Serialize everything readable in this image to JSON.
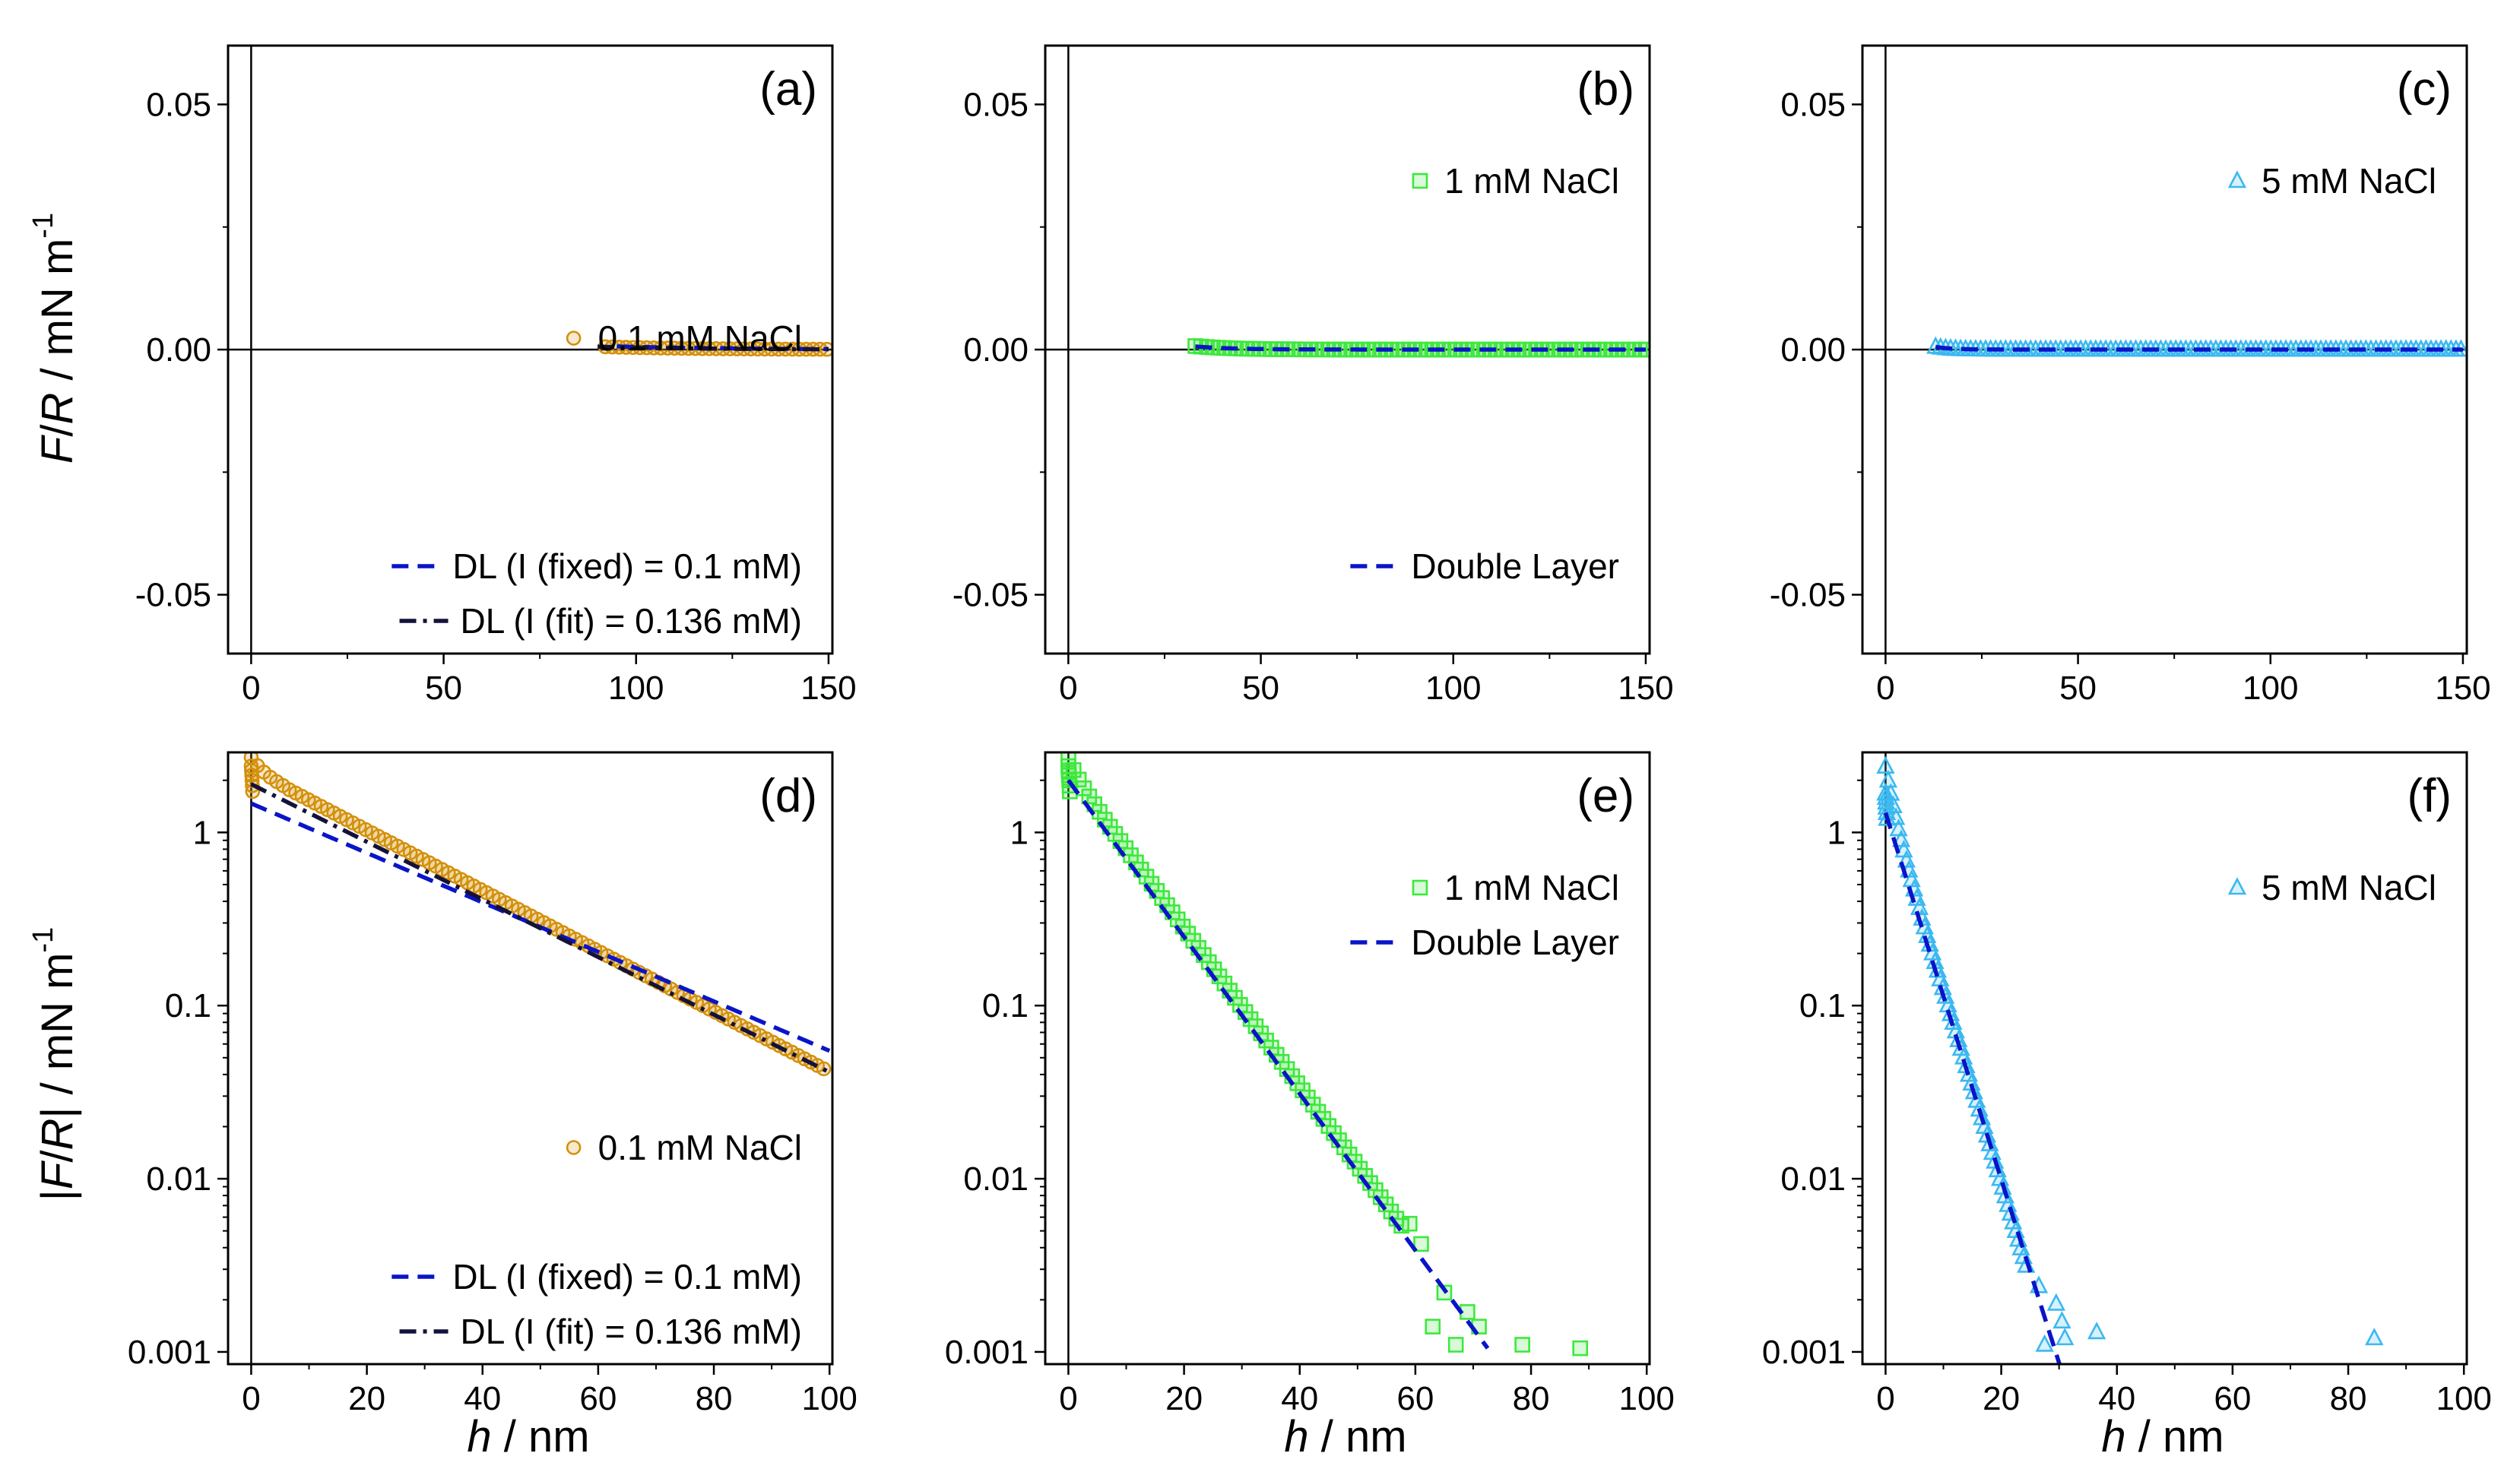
{
  "figure": {
    "xlabel_italic": "h",
    "xlabel_rest": " / nm",
    "ylabel_top": {
      "prefix": "",
      "italic": "F",
      "slash": "/",
      "italic2": "R",
      "suffix": " / mN m",
      "sup": "-1"
    },
    "ylabel_bottom": {
      "prefix": "|",
      "italic": "F",
      "slash": "/",
      "italic2": "R",
      "suffix": "| / mN m",
      "sup": "-1"
    }
  },
  "colors": {
    "orange": "#D4900A",
    "green": "#3DE83D",
    "cyan": "#3BB8F0",
    "blue_dash": "#0A14C8",
    "navy_dashdot": "#14123A"
  },
  "chart_data": [
    {
      "id": "a",
      "label": "(a)",
      "type": "scatter",
      "scale": "linear",
      "xlim": [
        -6,
        151
      ],
      "ylim": [
        -0.062,
        0.062
      ],
      "xticks": [
        0,
        50,
        100,
        150
      ],
      "xtick_labels": [
        "0",
        "50",
        "100",
        "150"
      ],
      "yticks": [
        -0.05,
        0,
        0.05
      ],
      "ytick_labels": [
        "-0.05",
        "0.00",
        "0.05"
      ],
      "legend_data": {
        "position": "middle-right",
        "entries": [
          {
            "name": "0.1 mM NaCl",
            "marker": "circle",
            "color": "#D4900A"
          }
        ]
      },
      "legend_fit": {
        "position": "bottom-right",
        "entries": [
          {
            "name": "DL (I (fixed) = 0.1 mM)",
            "style": "dash",
            "color": "#0A14C8"
          },
          {
            "name": "DL (I (fit) = 0.136 mM)",
            "style": "dashdot",
            "color": "#14123A"
          }
        ]
      },
      "series": [
        {
          "role": "data",
          "marker": "circle",
          "color": "#D4900A",
          "model": {
            "A": 2.3,
            "lambda": 24.9,
            "xmin": 92,
            "xmax": 150,
            "step": 1.8
          }
        },
        {
          "role": "fit_fixed",
          "style": "dash",
          "color": "#0A14C8",
          "model": {
            "A": 1.47,
            "lambda": 30.4,
            "xmin": 95,
            "xmax": 150
          }
        },
        {
          "role": "fit_fit",
          "style": "dashdot",
          "color": "#14123A",
          "model": {
            "A": 1.9,
            "lambda": 26.1,
            "xmin": 90,
            "xmax": 150
          }
        }
      ]
    },
    {
      "id": "b",
      "label": "(b)",
      "type": "scatter",
      "scale": "linear",
      "xlim": [
        -6,
        151
      ],
      "ylim": [
        -0.062,
        0.062
      ],
      "xticks": [
        0,
        50,
        100,
        150
      ],
      "xtick_labels": [
        "0",
        "50",
        "100",
        "150"
      ],
      "yticks": [
        -0.05,
        0,
        0.05
      ],
      "ytick_labels": [
        "-0.05",
        "0.00",
        "0.05"
      ],
      "legend_data": {
        "position": "top-right",
        "entries": [
          {
            "name": "1 mM NaCl",
            "marker": "square",
            "color": "#3DE83D"
          }
        ]
      },
      "legend_fit": {
        "position": "bottom-right",
        "entries": [
          {
            "name": "Double Layer",
            "style": "dash",
            "color": "#0A14C8"
          }
        ]
      },
      "series": [
        {
          "role": "data",
          "marker": "square",
          "color": "#3DE83D",
          "model": {
            "A": 2.3,
            "lambda": 9.5,
            "xmin": 33,
            "xmax": 150,
            "step": 1.5
          }
        },
        {
          "role": "fit",
          "style": "dash",
          "color": "#0A14C8",
          "model": {
            "A": 2.0,
            "lambda": 9.6,
            "xmin": 33,
            "xmax": 150
          }
        }
      ]
    },
    {
      "id": "c",
      "label": "(c)",
      "type": "scatter",
      "scale": "linear",
      "xlim": [
        -6,
        151
      ],
      "ylim": [
        -0.062,
        0.062
      ],
      "xticks": [
        0,
        50,
        100,
        150
      ],
      "xtick_labels": [
        "0",
        "50",
        "100",
        "150"
      ],
      "yticks": [
        -0.05,
        0,
        0.05
      ],
      "ytick_labels": [
        "-0.05",
        "0.00",
        "0.05"
      ],
      "legend_data": {
        "position": "top-right",
        "entries": [
          {
            "name": "5 mM NaCl",
            "marker": "triangle",
            "color": "#3BB8F0"
          }
        ]
      },
      "series": [
        {
          "role": "data",
          "marker": "triangle",
          "color": "#3BB8F0",
          "model": {
            "A": 1.6,
            "lambda": 3.9,
            "xmin": 13,
            "xmax": 150,
            "step": 1.3
          }
        },
        {
          "role": "fit",
          "style": "dash",
          "color": "#0A14C8",
          "model": {
            "A": 1.3,
            "lambda": 4.1,
            "xmin": 13,
            "xmax": 150
          }
        }
      ]
    },
    {
      "id": "d",
      "label": "(d)",
      "type": "scatter",
      "scale": "log",
      "xlim": [
        -4,
        100.5
      ],
      "ylim": [
        0.00085,
        2.9
      ],
      "xticks": [
        0,
        20,
        40,
        60,
        80,
        100
      ],
      "xtick_labels": [
        "0",
        "20",
        "40",
        "60",
        "80",
        "100"
      ],
      "yticks": [
        0.001,
        0.01,
        0.1,
        1
      ],
      "ytick_labels": [
        "0.001",
        "0.01",
        "0.1",
        "1"
      ],
      "legend_data": {
        "position": "middle-right",
        "entries": [
          {
            "name": "0.1 mM NaCl",
            "marker": "circle",
            "color": "#D4900A"
          }
        ]
      },
      "legend_fit": {
        "position": "bottom-right",
        "entries": [
          {
            "name": "DL (I (fixed) = 0.1 mM)",
            "style": "dash",
            "color": "#0A14C8"
          },
          {
            "name": "DL (I (fit) = 0.136 mM)",
            "style": "dashdot",
            "color": "#14123A"
          }
        ]
      },
      "series": [
        {
          "role": "data",
          "marker": "circle",
          "color": "#D4900A",
          "model": {
            "A": 2.3,
            "lambda": 24.9,
            "xmin": 0,
            "xmax": 100,
            "step": 1.1,
            "near_wall": 0.18
          }
        },
        {
          "role": "fit_fixed",
          "style": "dash",
          "color": "#0A14C8",
          "model": {
            "A": 1.47,
            "lambda": 30.4,
            "xmin": 0,
            "xmax": 100
          }
        },
        {
          "role": "fit_fit",
          "style": "dashdot",
          "color": "#14123A",
          "model": {
            "A": 1.9,
            "lambda": 26.1,
            "xmin": 0,
            "xmax": 100
          }
        }
      ]
    },
    {
      "id": "e",
      "label": "(e)",
      "type": "scatter",
      "scale": "log",
      "xlim": [
        -4,
        100.5
      ],
      "ylim": [
        0.00085,
        2.9
      ],
      "xticks": [
        0,
        20,
        40,
        60,
        80,
        100
      ],
      "xtick_labels": [
        "0",
        "20",
        "40",
        "60",
        "80",
        "100"
      ],
      "yticks": [
        0.001,
        0.01,
        0.1,
        1
      ],
      "ytick_labels": [
        "0.001",
        "0.01",
        "0.1",
        "1"
      ],
      "legend_data": {
        "position": "top-right",
        "entries": [
          {
            "name": "1 mM NaCl",
            "marker": "square",
            "color": "#3DE83D"
          }
        ]
      },
      "legend_fit": {
        "position": "top-right",
        "entries": [
          {
            "name": "Double Layer",
            "style": "dash",
            "color": "#0A14C8"
          }
        ]
      },
      "series": [
        {
          "role": "data",
          "marker": "square",
          "color": "#3DE83D",
          "model": {
            "A": 2.3,
            "lambda": 9.5,
            "xmin": 0,
            "xmax": 58,
            "step": 0.9,
            "near_wall": 0.15
          }
        },
        {
          "role": "data_extra",
          "marker": "square",
          "color": "#3DE83D",
          "x": [
            59,
            61,
            63,
            65,
            67,
            69,
            71,
            78.5,
            88.5
          ],
          "y": [
            0.0055,
            0.0042,
            0.0014,
            0.0022,
            0.0011,
            0.0017,
            0.0014,
            0.0011,
            0.00105
          ]
        },
        {
          "role": "fit",
          "style": "dash",
          "color": "#0A14C8",
          "model": {
            "A": 2.0,
            "lambda": 9.6,
            "xmin": 0,
            "xmax": 72.5
          }
        }
      ]
    },
    {
      "id": "f",
      "label": "(f)",
      "type": "scatter",
      "scale": "log",
      "xlim": [
        -4,
        100.5
      ],
      "ylim": [
        0.00085,
        2.9
      ],
      "xticks": [
        0,
        20,
        40,
        60,
        80,
        100
      ],
      "xtick_labels": [
        "0",
        "20",
        "40",
        "60",
        "80",
        "100"
      ],
      "yticks": [
        0.001,
        0.01,
        0.1,
        1
      ],
      "ytick_labels": [
        "0.001",
        "0.01",
        "0.1",
        "1"
      ],
      "legend_data": {
        "position": "top-right",
        "entries": [
          {
            "name": "5 mM NaCl",
            "marker": "triangle",
            "color": "#3BB8F0"
          }
        ]
      },
      "series": [
        {
          "role": "data",
          "marker": "triangle",
          "color": "#3BB8F0",
          "model": {
            "A": 1.6,
            "lambda": 3.9,
            "xmin": 0,
            "xmax": 24.5,
            "step": 0.45,
            "near_wall": 0.5
          }
        },
        {
          "role": "data_extra",
          "marker": "triangle",
          "color": "#3BB8F0",
          "x": [
            26.5,
            27.5,
            29.5,
            30.5,
            31,
            36.5,
            84.5
          ],
          "y": [
            0.0024,
            0.0011,
            0.0019,
            0.0015,
            0.0012,
            0.0013,
            0.0012
          ]
        },
        {
          "role": "fit",
          "style": "dash",
          "color": "#0A14C8",
          "model": {
            "A": 1.3,
            "lambda": 4.1,
            "xmin": 0,
            "xmax": 31
          }
        }
      ]
    }
  ]
}
